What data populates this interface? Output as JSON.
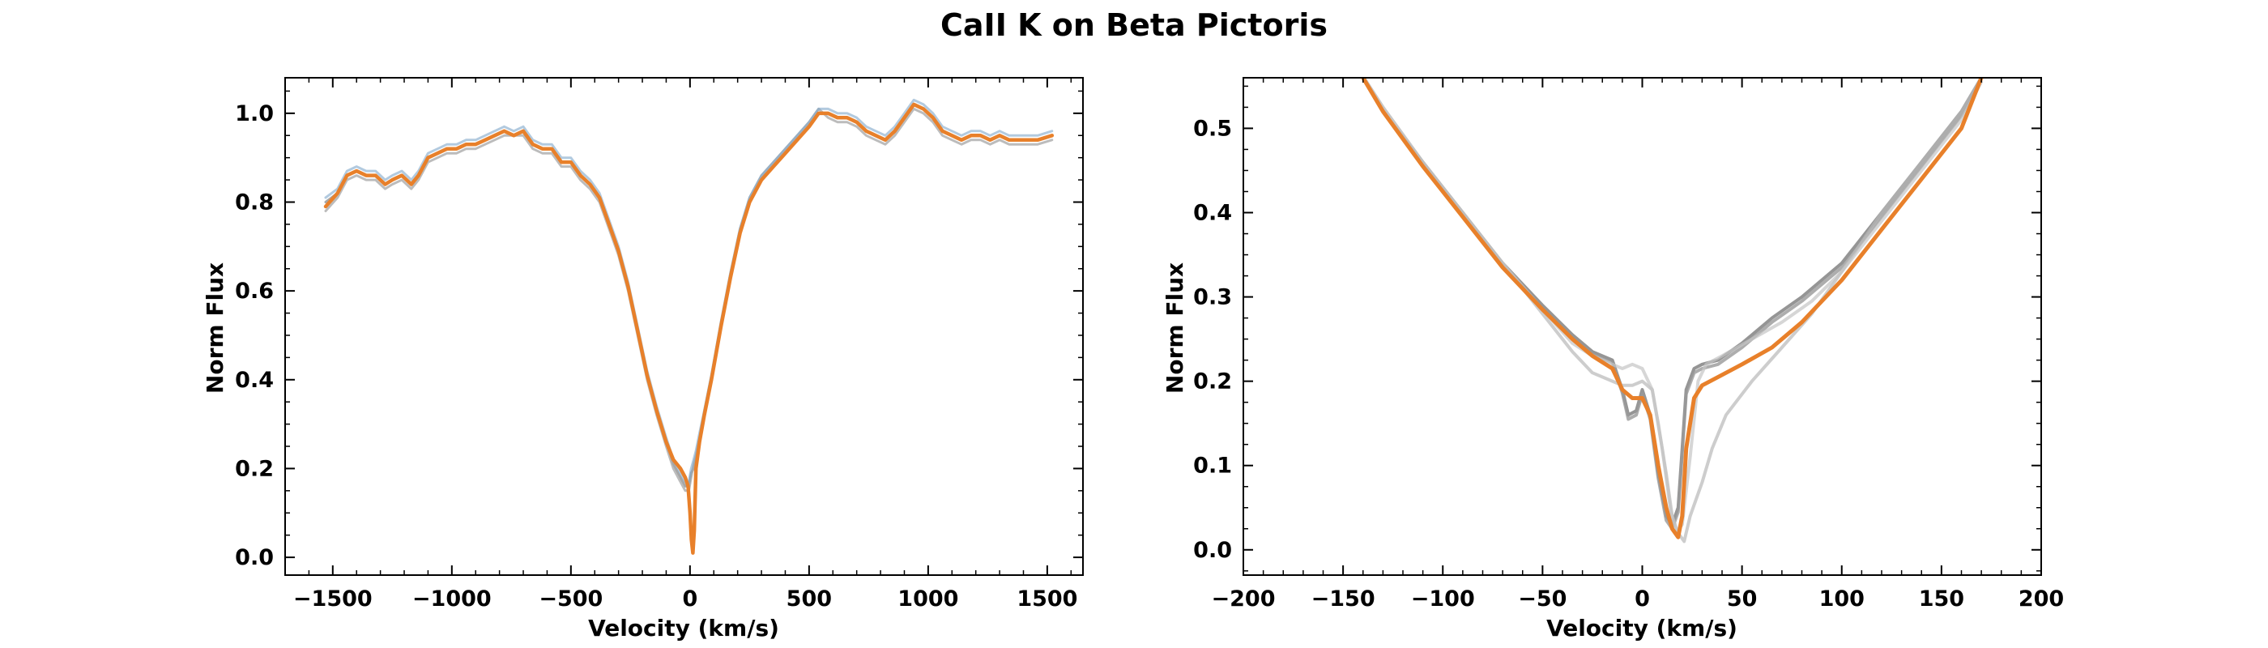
{
  "figure": {
    "title": "CaII K on Beta Pictoris"
  },
  "chart_data": [
    {
      "type": "line",
      "xlabel": "Velocity (km/s)",
      "ylabel": "Norm Flux",
      "xlim": [
        -1700,
        1650
      ],
      "ylim": [
        -0.04,
        1.08
      ],
      "xticks": [
        -1500,
        -1000,
        -500,
        0,
        500,
        1000,
        1500
      ],
      "yticks": [
        0.0,
        0.2,
        0.4,
        0.6,
        0.8,
        1.0
      ],
      "grid": false,
      "legend": "none",
      "series": [
        {
          "color": "#8a8a8a",
          "width": 3,
          "opacity": 0.75,
          "x": [
            -1530,
            -1480,
            -1440,
            -1400,
            -1360,
            -1320,
            -1280,
            -1250,
            -1210,
            -1170,
            -1140,
            -1100,
            -1060,
            -1020,
            -980,
            -940,
            -900,
            -860,
            -820,
            -780,
            -740,
            -700,
            -660,
            -620,
            -580,
            -540,
            -500,
            -460,
            -420,
            -380,
            -340,
            -300,
            -260,
            -220,
            -180,
            -140,
            -100,
            -70,
            -40,
            -20,
            -5,
            5,
            15,
            25,
            40,
            60,
            90,
            130,
            170,
            210,
            250,
            300,
            350,
            400,
            450,
            500,
            540,
            580,
            620,
            660,
            700,
            740,
            780,
            820,
            860,
            900,
            940,
            980,
            1020,
            1060,
            1100,
            1140,
            1180,
            1220,
            1260,
            1300,
            1340,
            1380,
            1420,
            1460,
            1520
          ],
          "y": [
            0.8,
            0.82,
            0.86,
            0.87,
            0.86,
            0.86,
            0.84,
            0.85,
            0.86,
            0.84,
            0.86,
            0.9,
            0.91,
            0.92,
            0.92,
            0.93,
            0.93,
            0.94,
            0.95,
            0.96,
            0.95,
            0.96,
            0.93,
            0.92,
            0.92,
            0.89,
            0.89,
            0.86,
            0.84,
            0.81,
            0.75,
            0.69,
            0.61,
            0.51,
            0.41,
            0.33,
            0.26,
            0.21,
            0.18,
            0.16,
            0.16,
            0.19,
            0.2,
            0.22,
            0.26,
            0.32,
            0.4,
            0.52,
            0.63,
            0.73,
            0.8,
            0.85,
            0.88,
            0.91,
            0.94,
            0.97,
            1.0,
            1.0,
            0.99,
            0.99,
            0.98,
            0.96,
            0.95,
            0.94,
            0.96,
            0.99,
            1.02,
            1.01,
            0.99,
            0.96,
            0.95,
            0.94,
            0.95,
            0.95,
            0.94,
            0.95,
            0.94,
            0.94,
            0.94,
            0.94,
            0.95
          ]
        },
        {
          "color": "#a6a6a6",
          "width": 3,
          "opacity": 0.75,
          "x": [
            -1530,
            -1480,
            -1440,
            -1400,
            -1360,
            -1320,
            -1280,
            -1250,
            -1210,
            -1170,
            -1140,
            -1100,
            -1060,
            -1020,
            -980,
            -940,
            -900,
            -860,
            -820,
            -780,
            -740,
            -700,
            -660,
            -620,
            -580,
            -540,
            -500,
            -460,
            -420,
            -380,
            -340,
            -300,
            -260,
            -220,
            -180,
            -140,
            -100,
            -70,
            -40,
            -20,
            -5,
            5,
            15,
            25,
            40,
            60,
            90,
            130,
            170,
            210,
            250,
            300,
            350,
            400,
            450,
            500,
            540,
            580,
            620,
            660,
            700,
            740,
            780,
            820,
            860,
            900,
            940,
            980,
            1020,
            1060,
            1100,
            1140,
            1180,
            1220,
            1260,
            1300,
            1340,
            1380,
            1420,
            1460,
            1520
          ],
          "y": [
            0.78,
            0.81,
            0.85,
            0.86,
            0.85,
            0.85,
            0.83,
            0.84,
            0.85,
            0.83,
            0.85,
            0.89,
            0.9,
            0.91,
            0.91,
            0.92,
            0.92,
            0.93,
            0.94,
            0.95,
            0.95,
            0.95,
            0.92,
            0.91,
            0.91,
            0.88,
            0.88,
            0.85,
            0.83,
            0.8,
            0.74,
            0.68,
            0.6,
            0.5,
            0.4,
            0.32,
            0.25,
            0.2,
            0.17,
            0.15,
            0.15,
            0.18,
            0.21,
            0.23,
            0.27,
            0.33,
            0.41,
            0.53,
            0.64,
            0.74,
            0.81,
            0.86,
            0.89,
            0.92,
            0.95,
            0.98,
            1.01,
            0.99,
            0.98,
            0.98,
            0.97,
            0.95,
            0.94,
            0.93,
            0.95,
            0.98,
            1.01,
            1.0,
            0.98,
            0.95,
            0.94,
            0.93,
            0.94,
            0.94,
            0.93,
            0.94,
            0.93,
            0.93,
            0.93,
            0.93,
            0.94
          ]
        },
        {
          "color": "#7ea6c9",
          "width": 3,
          "opacity": 0.6,
          "x": [
            -1530,
            -1480,
            -1440,
            -1400,
            -1360,
            -1320,
            -1280,
            -1250,
            -1210,
            -1170,
            -1140,
            -1100,
            -1060,
            -1020,
            -980,
            -940,
            -900,
            -860,
            -820,
            -780,
            -740,
            -700,
            -660,
            -620,
            -580,
            -540,
            -500,
            -460,
            -420,
            -380,
            -340,
            -300,
            -260,
            -220,
            -180,
            -140,
            -100,
            -70,
            -40,
            -20,
            -5,
            5,
            15,
            25,
            40,
            60,
            90,
            130,
            170,
            210,
            250,
            300,
            350,
            400,
            450,
            500,
            540,
            580,
            620,
            660,
            700,
            740,
            780,
            820,
            860,
            900,
            940,
            980,
            1020,
            1060,
            1100,
            1140,
            1180,
            1220,
            1260,
            1300,
            1340,
            1380,
            1420,
            1460,
            1520
          ],
          "y": [
            0.81,
            0.83,
            0.87,
            0.88,
            0.87,
            0.87,
            0.85,
            0.86,
            0.87,
            0.85,
            0.87,
            0.91,
            0.92,
            0.93,
            0.93,
            0.94,
            0.94,
            0.95,
            0.96,
            0.97,
            0.96,
            0.97,
            0.94,
            0.93,
            0.93,
            0.9,
            0.9,
            0.87,
            0.85,
            0.82,
            0.76,
            0.7,
            0.62,
            0.52,
            0.42,
            0.34,
            0.27,
            0.22,
            0.19,
            0.17,
            0.17,
            0.2,
            0.22,
            0.24,
            0.28,
            0.33,
            0.41,
            0.53,
            0.64,
            0.74,
            0.81,
            0.86,
            0.89,
            0.92,
            0.95,
            0.98,
            1.01,
            1.01,
            1.0,
            1.0,
            0.99,
            0.97,
            0.96,
            0.95,
            0.97,
            1.0,
            1.03,
            1.02,
            1.0,
            0.97,
            0.96,
            0.95,
            0.96,
            0.96,
            0.95,
            0.96,
            0.95,
            0.95,
            0.95,
            0.95,
            0.96
          ]
        },
        {
          "color": "#e8802a",
          "width": 4.5,
          "opacity": 1,
          "x": [
            -1530,
            -1480,
            -1440,
            -1400,
            -1360,
            -1320,
            -1280,
            -1250,
            -1210,
            -1170,
            -1140,
            -1100,
            -1060,
            -1020,
            -980,
            -940,
            -900,
            -860,
            -820,
            -780,
            -740,
            -700,
            -660,
            -620,
            -580,
            -540,
            -500,
            -460,
            -420,
            -380,
            -340,
            -300,
            -260,
            -220,
            -180,
            -140,
            -100,
            -70,
            -40,
            -20,
            -8,
            0,
            6,
            12,
            18,
            25,
            40,
            60,
            90,
            130,
            170,
            210,
            250,
            300,
            350,
            400,
            450,
            500,
            540,
            580,
            620,
            660,
            700,
            740,
            780,
            820,
            860,
            900,
            940,
            980,
            1020,
            1060,
            1100,
            1140,
            1180,
            1220,
            1260,
            1300,
            1340,
            1380,
            1420,
            1460,
            1520
          ],
          "y": [
            0.79,
            0.82,
            0.86,
            0.87,
            0.86,
            0.86,
            0.84,
            0.85,
            0.86,
            0.84,
            0.86,
            0.9,
            0.91,
            0.92,
            0.92,
            0.93,
            0.93,
            0.94,
            0.95,
            0.96,
            0.95,
            0.96,
            0.93,
            0.92,
            0.92,
            0.89,
            0.89,
            0.86,
            0.84,
            0.81,
            0.75,
            0.69,
            0.61,
            0.51,
            0.41,
            0.33,
            0.26,
            0.22,
            0.2,
            0.18,
            0.16,
            0.1,
            0.04,
            0.01,
            0.06,
            0.2,
            0.26,
            0.32,
            0.4,
            0.52,
            0.63,
            0.73,
            0.8,
            0.85,
            0.88,
            0.91,
            0.94,
            0.97,
            1.0,
            1.0,
            0.99,
            0.99,
            0.98,
            0.96,
            0.95,
            0.94,
            0.96,
            0.99,
            1.02,
            1.01,
            0.99,
            0.96,
            0.95,
            0.94,
            0.95,
            0.95,
            0.94,
            0.95,
            0.94,
            0.94,
            0.94,
            0.94,
            0.95
          ]
        }
      ]
    },
    {
      "type": "line",
      "xlabel": "Velocity (km/s)",
      "ylabel": "Norm Flux",
      "xlim": [
        -200,
        200
      ],
      "ylim": [
        -0.03,
        0.56
      ],
      "xticks": [
        -200,
        -150,
        -100,
        -50,
        0,
        50,
        100,
        150,
        200
      ],
      "yticks": [
        0.0,
        0.1,
        0.2,
        0.3,
        0.4,
        0.5
      ],
      "grid": false,
      "legend": "none",
      "series": [
        {
          "color": "#8a8a8a",
          "width": 4,
          "opacity": 0.9,
          "x": [
            -145,
            -130,
            -110,
            -90,
            -70,
            -50,
            -35,
            -25,
            -15,
            -10,
            -7,
            -3,
            0,
            4,
            8,
            12,
            15,
            18,
            20,
            22,
            26,
            30,
            38,
            50,
            65,
            80,
            100,
            120,
            140,
            160,
            170
          ],
          "y": [
            0.58,
            0.52,
            0.46,
            0.4,
            0.34,
            0.29,
            0.255,
            0.235,
            0.225,
            0.19,
            0.16,
            0.165,
            0.19,
            0.16,
            0.09,
            0.04,
            0.03,
            0.05,
            0.12,
            0.19,
            0.215,
            0.22,
            0.225,
            0.245,
            0.275,
            0.3,
            0.34,
            0.4,
            0.46,
            0.52,
            0.56
          ]
        },
        {
          "color": "#999999",
          "width": 4,
          "opacity": 0.8,
          "x": [
            -145,
            -130,
            -110,
            -90,
            -70,
            -50,
            -35,
            -25,
            -15,
            -10,
            -7,
            -3,
            0,
            4,
            8,
            12,
            15,
            18,
            20,
            22,
            26,
            30,
            38,
            50,
            65,
            80,
            100,
            120,
            140,
            160,
            170
          ],
          "y": [
            0.58,
            0.52,
            0.455,
            0.395,
            0.335,
            0.285,
            0.25,
            0.232,
            0.222,
            0.186,
            0.155,
            0.16,
            0.185,
            0.155,
            0.085,
            0.035,
            0.025,
            0.045,
            0.115,
            0.185,
            0.21,
            0.215,
            0.22,
            0.24,
            0.27,
            0.295,
            0.335,
            0.395,
            0.455,
            0.515,
            0.56
          ]
        },
        {
          "color": "#b8b8b8",
          "width": 4,
          "opacity": 0.7,
          "x": [
            -145,
            -130,
            -110,
            -90,
            -70,
            -50,
            -35,
            -25,
            -15,
            -10,
            -5,
            0,
            5,
            8,
            12,
            15,
            18,
            21,
            24,
            27,
            30,
            35,
            42,
            55,
            70,
            85,
            100,
            120,
            140,
            160,
            170
          ],
          "y": [
            0.58,
            0.525,
            0.46,
            0.4,
            0.34,
            0.28,
            0.235,
            0.21,
            0.2,
            0.195,
            0.195,
            0.2,
            0.19,
            0.15,
            0.09,
            0.04,
            0.02,
            0.01,
            0.04,
            0.06,
            0.08,
            0.12,
            0.16,
            0.2,
            0.24,
            0.28,
            0.33,
            0.4,
            0.46,
            0.52,
            0.56
          ]
        },
        {
          "color": "#c4c4c4",
          "width": 4,
          "opacity": 0.7,
          "x": [
            -145,
            -130,
            -110,
            -90,
            -70,
            -50,
            -35,
            -25,
            -15,
            -10,
            -5,
            0,
            5,
            10,
            14,
            17,
            20,
            24,
            28,
            32,
            40,
            55,
            70,
            85,
            100,
            120,
            140,
            160,
            170
          ],
          "y": [
            0.58,
            0.525,
            0.46,
            0.4,
            0.34,
            0.285,
            0.245,
            0.23,
            0.22,
            0.215,
            0.22,
            0.215,
            0.19,
            0.12,
            0.05,
            0.02,
            0.03,
            0.11,
            0.2,
            0.22,
            0.23,
            0.25,
            0.27,
            0.295,
            0.33,
            0.39,
            0.45,
            0.51,
            0.555
          ]
        },
        {
          "color": "#e8802a",
          "width": 5,
          "opacity": 1,
          "x": [
            -145,
            -130,
            -110,
            -90,
            -70,
            -50,
            -35,
            -25,
            -15,
            -10,
            -5,
            0,
            4,
            8,
            12,
            15,
            18,
            20,
            22,
            26,
            30,
            38,
            50,
            65,
            80,
            100,
            120,
            140,
            160,
            170
          ],
          "y": [
            0.58,
            0.52,
            0.455,
            0.395,
            0.335,
            0.285,
            0.25,
            0.23,
            0.215,
            0.19,
            0.18,
            0.18,
            0.16,
            0.1,
            0.05,
            0.025,
            0.015,
            0.04,
            0.12,
            0.18,
            0.195,
            0.205,
            0.22,
            0.24,
            0.27,
            0.32,
            0.38,
            0.44,
            0.5,
            0.56
          ]
        }
      ]
    }
  ]
}
